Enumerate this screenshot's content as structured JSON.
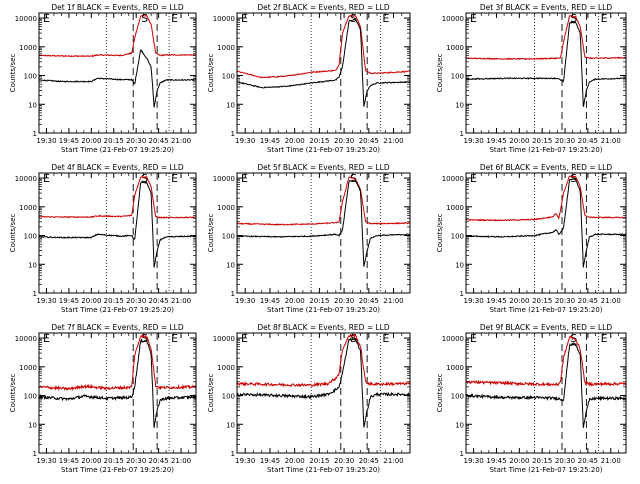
{
  "colors": {
    "background": "#ffffff",
    "axis": "#000000",
    "events": "#000000",
    "lld": "#cc0000"
  },
  "common": {
    "ylabel": "Counts/sec",
    "xlabel": "Start Time (21-Feb-07 19:25:20)",
    "x_tick_labels": [
      "19:30",
      "19:45",
      "20:00",
      "20:15",
      "20:30",
      "20:45",
      "21:00"
    ],
    "y_tick_labels": [
      "1",
      "10",
      "100",
      "1000",
      "10000"
    ],
    "yscale": "log",
    "ylim": [
      1,
      15000
    ],
    "xlim_minutes": [
      -5,
      100
    ],
    "marker_letters": [
      "E",
      "S",
      "E"
    ],
    "markers_minutes": {
      "E1_dotted": 40,
      "S_dashed_start": 58,
      "S_dashed_end": 74,
      "E2_dotted": 82
    }
  },
  "chart_data": [
    {
      "type": "line",
      "title": "Det 1f BLACK = Events, RED = LLD",
      "xlabel": "Start Time (21-Feb-07 19:25:20)",
      "ylabel": "Counts/sec",
      "x_tick_labels": [
        "19:30",
        "19:45",
        "20:00",
        "20:15",
        "20:30",
        "20:45",
        "21:00"
      ],
      "y_tick_labels": [
        "1",
        "10",
        "100",
        "1000",
        "10000"
      ],
      "series": [
        {
          "name": "Events",
          "color": "black",
          "x_minutes": [
            -5,
            10,
            30,
            34,
            50,
            57,
            59,
            63,
            67,
            70,
            72,
            74,
            76,
            80,
            100
          ],
          "values": [
            70,
            62,
            62,
            80,
            72,
            72,
            50,
            800,
            400,
            200,
            8,
            30,
            55,
            70,
            70
          ]
        },
        {
          "name": "LLD",
          "color": "red",
          "x_minutes": [
            -5,
            10,
            30,
            34,
            50,
            57,
            59,
            63,
            67,
            70,
            73,
            76,
            80,
            100
          ],
          "values": [
            500,
            480,
            470,
            520,
            500,
            600,
            2000,
            12000,
            12000,
            6000,
            600,
            500,
            520,
            520
          ]
        }
      ]
    },
    {
      "type": "line",
      "title": "Det 2f BLACK = Events, RED = LLD",
      "xlabel": "Start Time (21-Feb-07 19:25:20)",
      "ylabel": "Counts/sec",
      "x_tick_labels": [
        "19:30",
        "19:45",
        "20:00",
        "20:15",
        "20:30",
        "20:45",
        "21:00"
      ],
      "y_tick_labels": [
        "1",
        "10",
        "100",
        "1000",
        "10000"
      ],
      "series": [
        {
          "name": "Events",
          "color": "black",
          "x_minutes": [
            -5,
            10,
            25,
            40,
            55,
            57,
            59,
            63,
            67,
            70,
            72,
            74,
            76,
            80,
            100
          ],
          "values": [
            60,
            38,
            42,
            55,
            70,
            90,
            200,
            8000,
            9000,
            4000,
            8,
            30,
            45,
            55,
            60
          ]
        },
        {
          "name": "LLD",
          "color": "red",
          "x_minutes": [
            -5,
            10,
            25,
            40,
            55,
            57,
            59,
            63,
            67,
            70,
            73,
            76,
            80,
            100
          ],
          "values": [
            140,
            85,
            95,
            130,
            150,
            250,
            3000,
            12000,
            12000,
            5000,
            150,
            120,
            120,
            140
          ]
        }
      ]
    },
    {
      "type": "line",
      "title": "Det 3f BLACK = Events, RED = LLD",
      "xlabel": "Start Time (21-Feb-07 19:25:20)",
      "ylabel": "Counts/sec",
      "x_tick_labels": [
        "19:30",
        "19:45",
        "20:00",
        "20:15",
        "20:30",
        "20:45",
        "21:00"
      ],
      "y_tick_labels": [
        "1",
        "10",
        "100",
        "1000",
        "10000"
      ],
      "series": [
        {
          "name": "Events",
          "color": "black",
          "x_minutes": [
            -5,
            20,
            40,
            55,
            57,
            59,
            63,
            67,
            70,
            72,
            74,
            76,
            80,
            100
          ],
          "values": [
            75,
            80,
            80,
            80,
            70,
            60,
            7000,
            7000,
            3000,
            8,
            30,
            60,
            75,
            80
          ]
        },
        {
          "name": "LLD",
          "color": "red",
          "x_minutes": [
            -5,
            20,
            40,
            55,
            57,
            59,
            63,
            67,
            70,
            73,
            76,
            80,
            100
          ],
          "values": [
            400,
            380,
            380,
            400,
            400,
            1500,
            12000,
            11000,
            5000,
            450,
            400,
            400,
            420
          ]
        }
      ]
    },
    {
      "type": "line",
      "title": "Det 4f BLACK = Events, RED = LLD",
      "xlabel": "Start Time (21-Feb-07 19:25:20)",
      "ylabel": "Counts/sec",
      "x_tick_labels": [
        "19:30",
        "19:45",
        "20:00",
        "20:15",
        "20:30",
        "20:45",
        "21:00"
      ],
      "y_tick_labels": [
        "1",
        "10",
        "100",
        "1000",
        "10000"
      ],
      "series": [
        {
          "name": "Events",
          "color": "black",
          "x_minutes": [
            -5,
            10,
            30,
            34,
            50,
            57,
            59,
            63,
            67,
            70,
            72,
            74,
            76,
            80,
            100
          ],
          "values": [
            90,
            85,
            85,
            110,
            95,
            100,
            70,
            7000,
            7000,
            3000,
            8,
            30,
            70,
            90,
            95
          ]
        },
        {
          "name": "LLD",
          "color": "red",
          "x_minutes": [
            -5,
            10,
            30,
            34,
            50,
            57,
            59,
            63,
            67,
            70,
            73,
            76,
            80,
            100
          ],
          "values": [
            450,
            440,
            440,
            480,
            460,
            500,
            2500,
            11000,
            11000,
            5000,
            450,
            420,
            420,
            430
          ]
        }
      ]
    },
    {
      "type": "line",
      "title": "Det 5f BLACK = Events, RED = LLD",
      "xlabel": "Start Time (21-Feb-07 19:25:20)",
      "ylabel": "Counts/sec",
      "x_tick_labels": [
        "19:30",
        "19:45",
        "20:00",
        "20:15",
        "20:30",
        "20:45",
        "21:00"
      ],
      "y_tick_labels": [
        "1",
        "10",
        "100",
        "1000",
        "10000"
      ],
      "series": [
        {
          "name": "Events",
          "color": "black",
          "x_minutes": [
            -5,
            20,
            40,
            55,
            57,
            59,
            63,
            67,
            70,
            72,
            74,
            76,
            80,
            100
          ],
          "values": [
            95,
            90,
            95,
            110,
            100,
            150,
            8000,
            8000,
            3500,
            8,
            30,
            80,
            100,
            110
          ]
        },
        {
          "name": "LLD",
          "color": "red",
          "x_minutes": [
            -5,
            20,
            40,
            55,
            57,
            59,
            63,
            67,
            70,
            73,
            76,
            80,
            100
          ],
          "values": [
            260,
            240,
            250,
            280,
            300,
            1500,
            11000,
            9000,
            4000,
            300,
            260,
            260,
            270
          ]
        }
      ]
    },
    {
      "type": "line",
      "title": "Det 6f BLACK = Events, RED = LLD",
      "xlabel": "Start Time (21-Feb-07 19:25:20)",
      "ylabel": "Counts/sec",
      "x_tick_labels": [
        "19:30",
        "19:45",
        "20:00",
        "20:15",
        "20:30",
        "20:45",
        "21:00"
      ],
      "y_tick_labels": [
        "1",
        "10",
        "100",
        "1000",
        "10000"
      ],
      "series": [
        {
          "name": "Events",
          "color": "black",
          "x_minutes": [
            -5,
            20,
            40,
            52,
            54,
            56,
            59,
            63,
            67,
            70,
            72,
            74,
            76,
            80,
            100
          ],
          "values": [
            95,
            90,
            100,
            130,
            160,
            110,
            180,
            9000,
            9000,
            3500,
            8,
            30,
            90,
            110,
            110
          ]
        },
        {
          "name": "LLD",
          "color": "red",
          "x_minutes": [
            -5,
            20,
            40,
            52,
            54,
            56,
            59,
            63,
            67,
            70,
            73,
            76,
            80,
            100
          ],
          "values": [
            350,
            340,
            360,
            450,
            600,
            400,
            3000,
            12000,
            11000,
            5000,
            500,
            430,
            430,
            420
          ]
        }
      ]
    },
    {
      "type": "line",
      "title": "Det 7f BLACK = Events, RED = LLD",
      "xlabel": "Start Time (21-Feb-07 19:25:20)",
      "ylabel": "Counts/sec",
      "x_tick_labels": [
        "19:30",
        "19:45",
        "20:00",
        "20:15",
        "20:30",
        "20:45",
        "21:00"
      ],
      "y_tick_labels": [
        "1",
        "10",
        "100",
        "1000",
        "10000"
      ],
      "series": [
        {
          "name": "Events",
          "color": "black",
          "x_minutes": [
            -5,
            15,
            25,
            40,
            55,
            57,
            59,
            63,
            67,
            70,
            72,
            74,
            76,
            80,
            100
          ],
          "values": [
            90,
            75,
            95,
            80,
            85,
            90,
            200,
            8000,
            8000,
            3000,
            8,
            30,
            70,
            80,
            90
          ]
        },
        {
          "name": "LLD",
          "color": "red",
          "x_minutes": [
            -5,
            15,
            25,
            40,
            55,
            57,
            59,
            63,
            67,
            70,
            73,
            76,
            80,
            100
          ],
          "values": [
            200,
            170,
            210,
            180,
            190,
            200,
            2500,
            12000,
            11000,
            4500,
            220,
            190,
            190,
            200
          ]
        }
      ]
    },
    {
      "type": "line",
      "title": "Det 8f BLACK = Events, RED = LLD",
      "xlabel": "Start Time (21-Feb-07 19:25:20)",
      "ylabel": "Counts/sec",
      "x_tick_labels": [
        "19:30",
        "19:45",
        "20:00",
        "20:15",
        "20:30",
        "20:45",
        "21:00"
      ],
      "y_tick_labels": [
        "1",
        "10",
        "100",
        "1000",
        "10000"
      ],
      "series": [
        {
          "name": "Events",
          "color": "black",
          "x_minutes": [
            -5,
            20,
            40,
            50,
            55,
            57,
            59,
            63,
            67,
            70,
            72,
            74,
            76,
            80,
            100
          ],
          "values": [
            110,
            100,
            90,
            110,
            160,
            200,
            600,
            9000,
            9000,
            3500,
            8,
            30,
            90,
            110,
            110
          ]
        },
        {
          "name": "LLD",
          "color": "red",
          "x_minutes": [
            -5,
            20,
            40,
            50,
            55,
            57,
            59,
            63,
            67,
            70,
            73,
            76,
            80,
            100
          ],
          "values": [
            260,
            240,
            230,
            260,
            400,
            600,
            4000,
            12000,
            12000,
            5000,
            300,
            250,
            250,
            260
          ]
        }
      ]
    },
    {
      "type": "line",
      "title": "Det 9f BLACK = Events, RED = LLD",
      "xlabel": "Start Time (21-Feb-07 19:25:20)",
      "ylabel": "Counts/sec",
      "x_tick_labels": [
        "19:30",
        "19:45",
        "20:00",
        "20:15",
        "20:30",
        "20:45",
        "21:00"
      ],
      "y_tick_labels": [
        "1",
        "10",
        "100",
        "1000",
        "10000"
      ],
      "series": [
        {
          "name": "Events",
          "color": "black",
          "x_minutes": [
            -5,
            20,
            40,
            55,
            57,
            59,
            63,
            67,
            70,
            72,
            74,
            76,
            80,
            100
          ],
          "values": [
            100,
            85,
            85,
            80,
            75,
            70,
            6000,
            6000,
            2500,
            8,
            30,
            70,
            80,
            80
          ]
        },
        {
          "name": "LLD",
          "color": "red",
          "x_minutes": [
            -5,
            20,
            40,
            55,
            57,
            59,
            63,
            67,
            70,
            73,
            76,
            80,
            100
          ],
          "values": [
            300,
            270,
            250,
            240,
            300,
            2000,
            11000,
            9000,
            4000,
            280,
            250,
            250,
            260
          ]
        }
      ]
    }
  ]
}
